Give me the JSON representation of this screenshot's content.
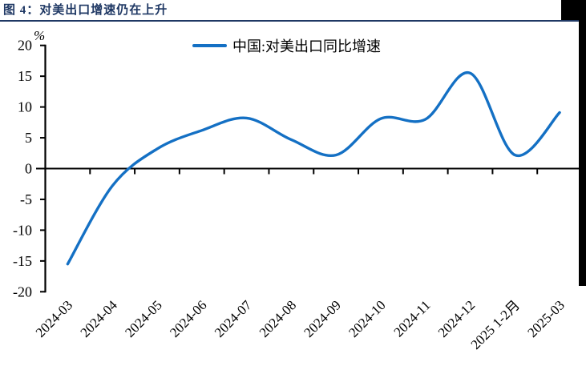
{
  "header": {
    "title": "图 4：对美出口增速仍在上升",
    "accent_color": "#1F3864"
  },
  "chart_data": {
    "type": "line",
    "unit_label": "%",
    "legend_position": "top-center",
    "grid": false,
    "smooth": true,
    "categories": [
      "2024-03",
      "2024-04",
      "2024-05",
      "2024-06",
      "2024-07",
      "2024-08",
      "2024-09",
      "2024-10",
      "2024-11",
      "2024-12",
      "2025 1-2月",
      "2025-03"
    ],
    "series": [
      {
        "name": "中国:对美出口同比增速",
        "color": "#1470C4",
        "values": [
          -15.5,
          -2.8,
          3.2,
          6.2,
          8.2,
          4.7,
          2.2,
          8.1,
          8.0,
          15.5,
          2.2,
          9.1
        ]
      }
    ],
    "ylim": [
      -20,
      20
    ],
    "yticks": [
      20,
      15,
      10,
      5,
      0,
      -5,
      -10,
      -15,
      -20
    ],
    "axis_color": "#000000"
  }
}
